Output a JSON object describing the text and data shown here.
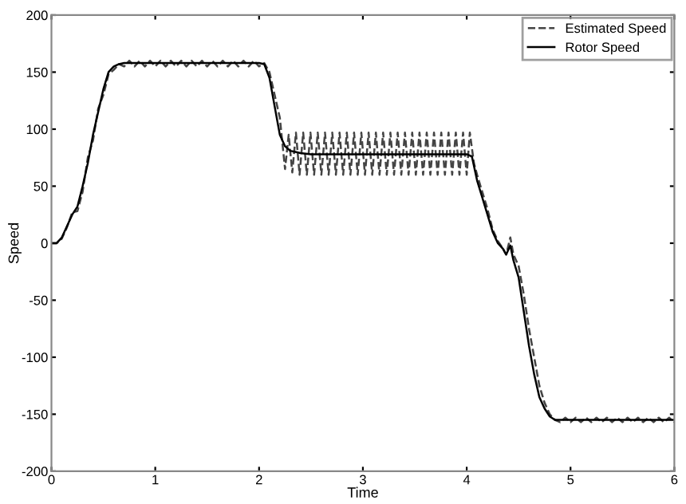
{
  "chart_data": {
    "type": "line",
    "xlabel": "Time",
    "ylabel": "Speed",
    "xlim": [
      0,
      6
    ],
    "ylim": [
      -200,
      200
    ],
    "xticks": [
      0,
      1,
      2,
      3,
      4,
      5,
      6
    ],
    "yticks": [
      -200,
      -150,
      -100,
      -50,
      0,
      50,
      100,
      150,
      200
    ],
    "grid": false,
    "legend": "top right",
    "series": [
      {
        "name": "Estimated Speed",
        "color": "#444444",
        "line_style": "dashed",
        "x": [
          0,
          0.05,
          0.1,
          0.15,
          0.2,
          0.25,
          0.3,
          0.35,
          0.4,
          0.45,
          0.5,
          0.55,
          0.6,
          0.65,
          0.7,
          0.75,
          0.8,
          0.85,
          0.9,
          0.95,
          1.0,
          1.05,
          1.1,
          1.15,
          1.2,
          1.25,
          1.3,
          1.35,
          1.4,
          1.45,
          1.5,
          1.55,
          1.6,
          1.65,
          1.7,
          1.75,
          1.8,
          1.85,
          1.9,
          1.95,
          2.0,
          2.05,
          2.1,
          2.15,
          2.2,
          2.25,
          2.285,
          2.32,
          2.355,
          2.39,
          2.425,
          2.46,
          2.495,
          2.53,
          2.565,
          2.6,
          2.635,
          2.67,
          2.705,
          2.74,
          2.775,
          2.81,
          2.845,
          2.88,
          2.915,
          2.95,
          2.985,
          3.02,
          3.055,
          3.09,
          3.125,
          3.16,
          3.195,
          3.23,
          3.265,
          3.3,
          3.335,
          3.37,
          3.405,
          3.44,
          3.475,
          3.51,
          3.545,
          3.58,
          3.615,
          3.65,
          3.685,
          3.72,
          3.755,
          3.79,
          3.825,
          3.86,
          3.895,
          3.93,
          3.965,
          4.0,
          4.03,
          4.07,
          4.1,
          4.15,
          4.2,
          4.25,
          4.3,
          4.35,
          4.38,
          4.42,
          4.45,
          4.5,
          4.55,
          4.6,
          4.65,
          4.7,
          4.75,
          4.8,
          4.85,
          4.9,
          4.95,
          5.0,
          5.05,
          5.1,
          5.15,
          5.2,
          5.25,
          5.3,
          5.35,
          5.4,
          5.45,
          5.5,
          5.55,
          5.6,
          5.65,
          5.7,
          5.75,
          5.8,
          5.85,
          5.9,
          5.95,
          6.0
        ],
        "values": [
          0,
          0,
          4,
          14,
          27,
          28,
          45,
          75,
          90,
          118,
          130,
          148,
          152,
          157,
          155,
          160,
          155,
          160,
          155,
          160,
          155,
          160,
          155,
          160,
          155,
          160,
          155,
          160,
          155,
          160,
          155,
          160,
          155,
          160,
          155,
          160,
          155,
          160,
          155,
          160,
          155,
          158,
          150,
          130,
          110,
          65,
          95,
          62,
          97,
          60,
          97,
          60,
          97,
          60,
          97,
          60,
          97,
          60,
          97,
          60,
          97,
          60,
          97,
          60,
          97,
          60,
          97,
          60,
          97,
          60,
          97,
          60,
          97,
          60,
          97,
          60,
          97,
          60,
          97,
          60,
          97,
          60,
          97,
          60,
          97,
          60,
          97,
          60,
          97,
          60,
          97,
          60,
          97,
          60,
          97,
          60,
          97,
          70,
          60,
          45,
          30,
          12,
          2,
          -5,
          -10,
          5,
          -10,
          -20,
          -45,
          -75,
          -100,
          -125,
          -140,
          -150,
          -155,
          -157,
          -153,
          -157,
          -153,
          -157,
          -153,
          -157,
          -153,
          -157,
          -153,
          -157,
          -153,
          -157,
          -153,
          -157,
          -153,
          -157,
          -153,
          -157,
          -153,
          -157,
          -153,
          -157
        ]
      },
      {
        "name": "Rotor Speed",
        "color": "#000000",
        "line_style": "solid",
        "x": [
          0,
          0.05,
          0.1,
          0.15,
          0.2,
          0.25,
          0.3,
          0.35,
          0.4,
          0.45,
          0.5,
          0.55,
          0.6,
          0.65,
          0.7,
          0.8,
          1,
          1.5,
          2.0,
          2.05,
          2.1,
          2.15,
          2.2,
          2.25,
          2.3,
          2.35,
          2.4,
          2.5,
          3,
          3.5,
          4.0,
          4.05,
          4.1,
          4.15,
          4.2,
          4.25,
          4.3,
          4.35,
          4.38,
          4.42,
          4.45,
          4.5,
          4.55,
          4.6,
          4.65,
          4.7,
          4.75,
          4.8,
          4.85,
          4.9,
          5.0,
          5.5,
          6
        ],
        "values": [
          0,
          0,
          5,
          15,
          25,
          32,
          50,
          70,
          95,
          115,
          135,
          150,
          155,
          157,
          158,
          158,
          158,
          158,
          158,
          157,
          145,
          120,
          95,
          85,
          81,
          80,
          79,
          78,
          78,
          78,
          78,
          76,
          55,
          40,
          25,
          10,
          0,
          -5,
          -10,
          -2,
          -15,
          -30,
          -60,
          -90,
          -115,
          -135,
          -145,
          -152,
          -155,
          -155,
          -155,
          -155,
          -155
        ]
      }
    ]
  }
}
